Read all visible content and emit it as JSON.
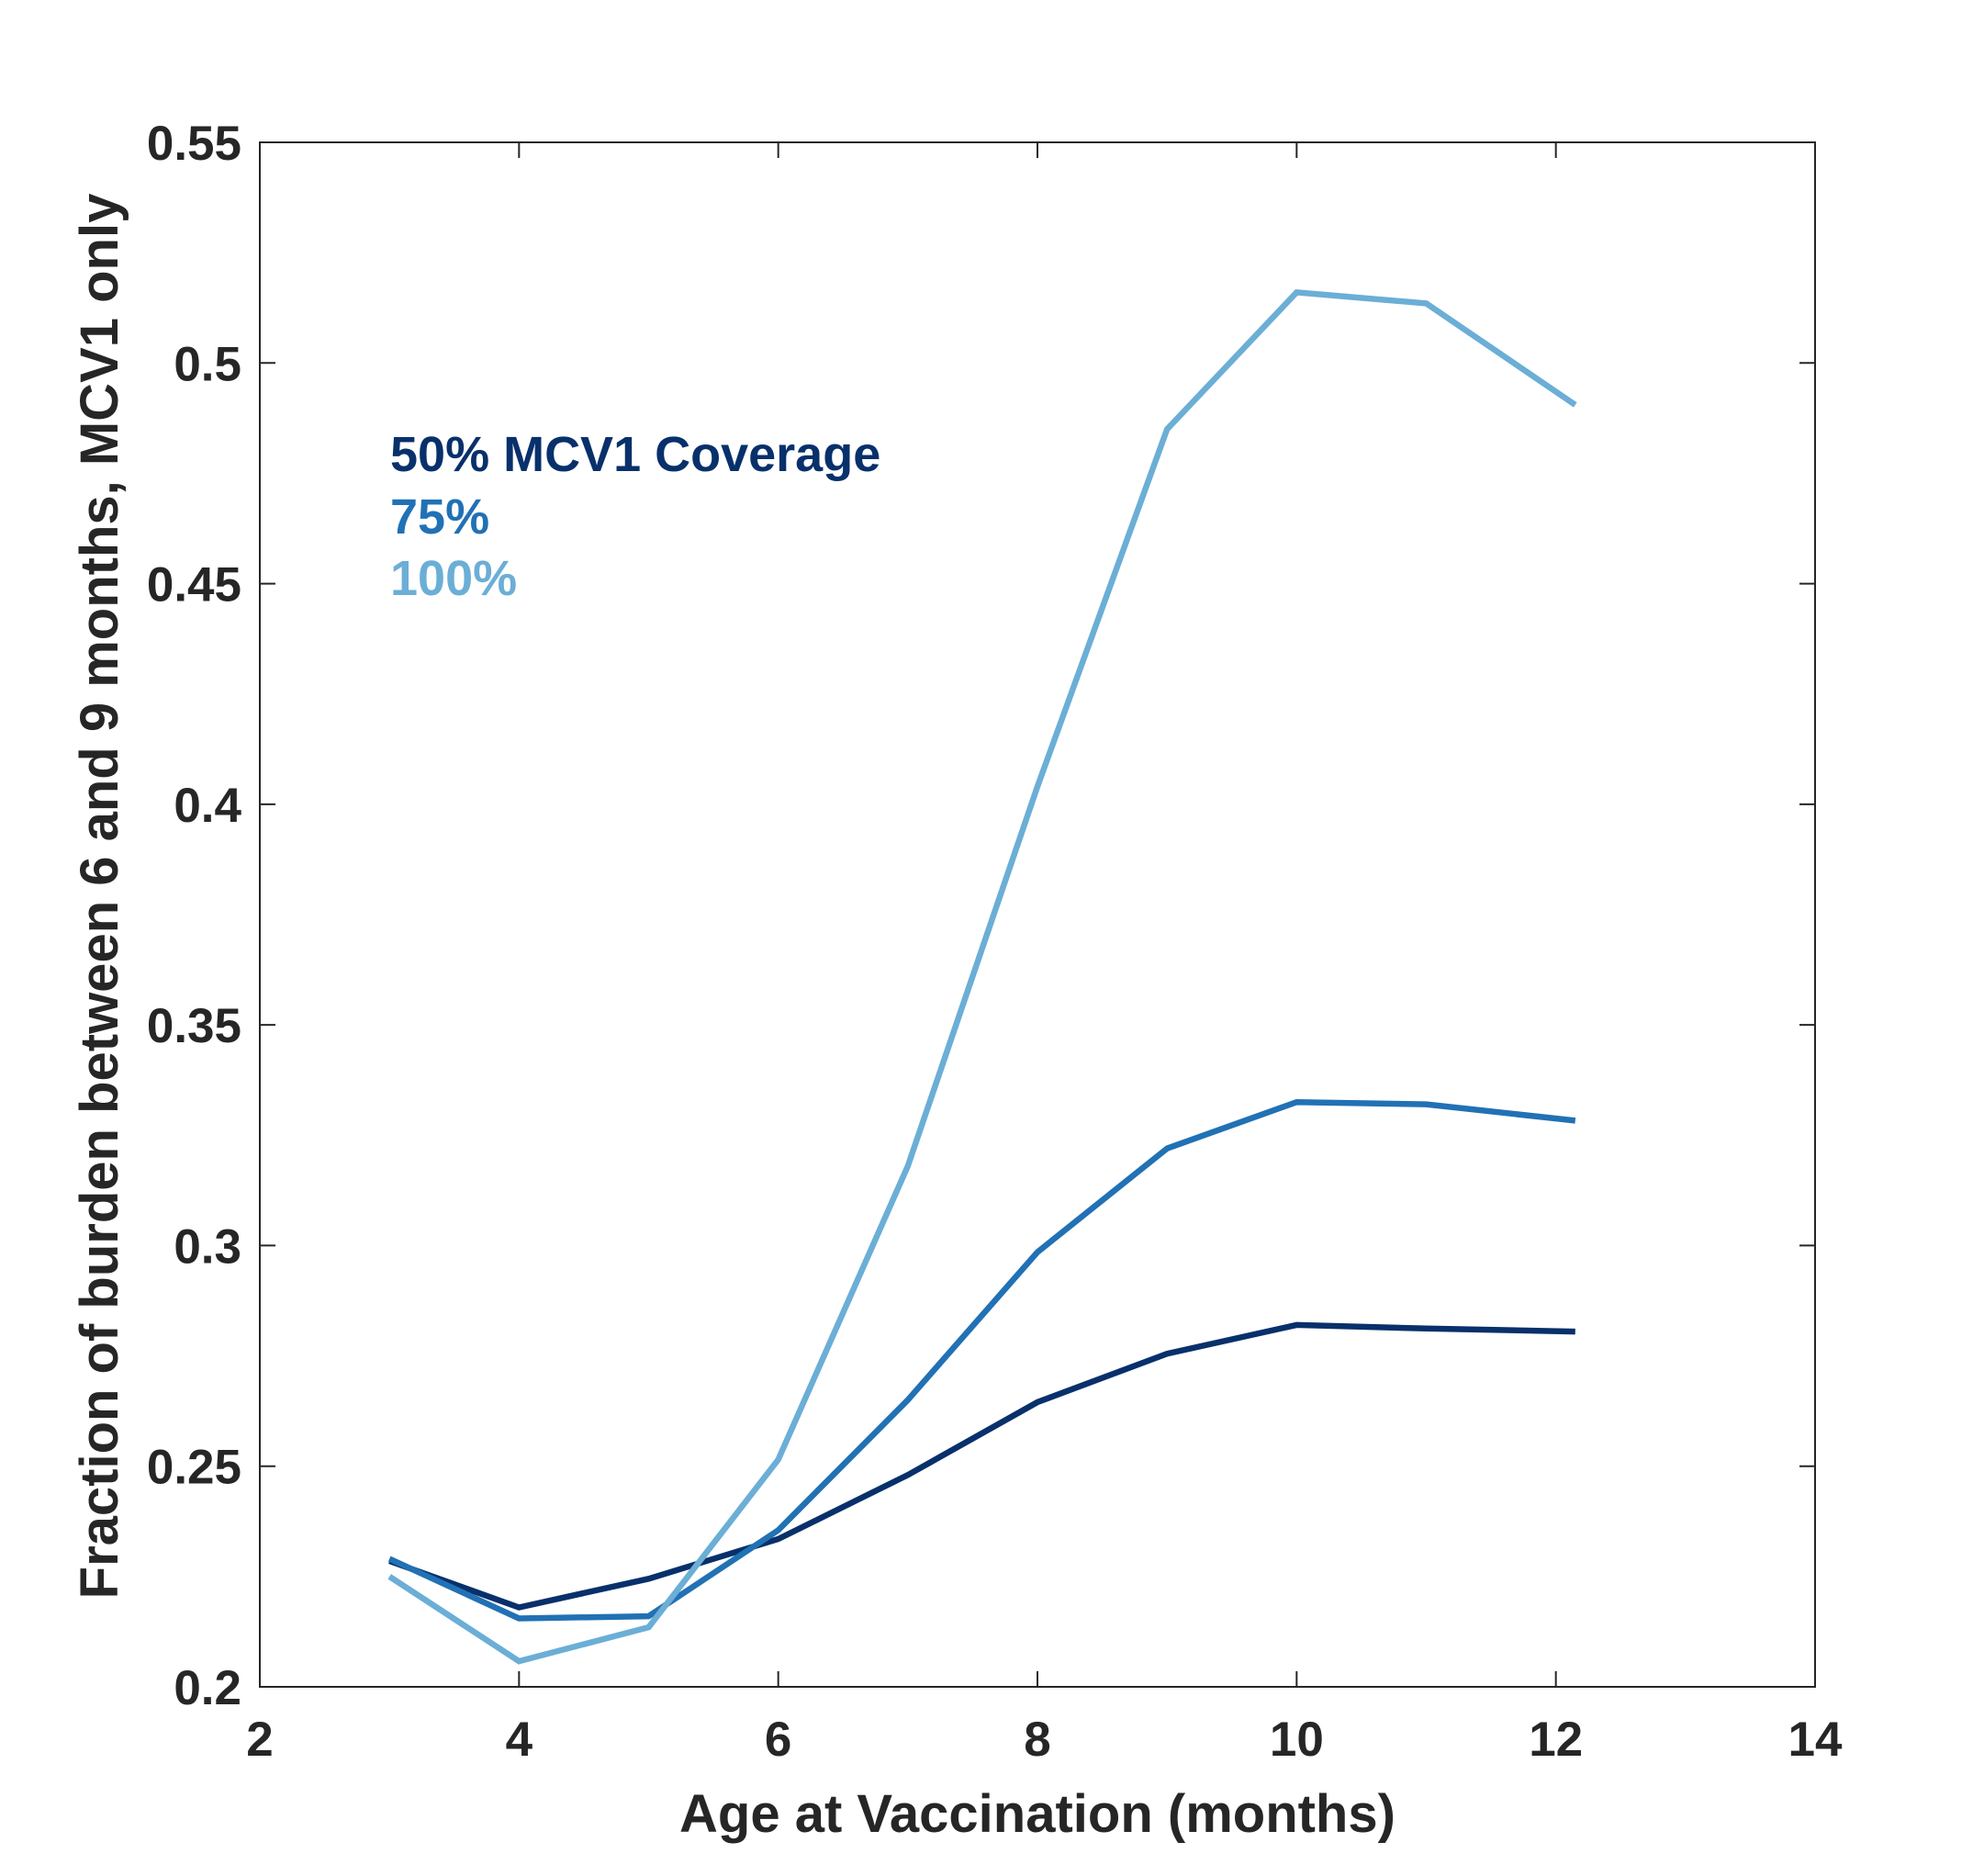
{
  "chart_data": {
    "type": "line",
    "title": "",
    "xlabel": "Age at Vaccination (months)",
    "ylabel": "Fraction of burden between 6 and 9 months, MCV1 only",
    "xlim": [
      2,
      14
    ],
    "ylim": [
      0.2,
      0.55
    ],
    "xticks": [
      2,
      4,
      6,
      8,
      10,
      12,
      14
    ],
    "yticks": [
      0.2,
      0.25,
      0.3,
      0.35,
      0.4,
      0.45,
      0.5,
      0.55
    ],
    "xtick_labels": [
      "2",
      "4",
      "6",
      "8",
      "10",
      "12",
      "14"
    ],
    "ytick_labels": [
      "0.2",
      "0.25",
      "0.3",
      "0.35",
      "0.4",
      "0.45",
      "0.5",
      "0.55"
    ],
    "grid": false,
    "legend_position": "top-left",
    "x": [
      3,
      4,
      5,
      6,
      7,
      8,
      9,
      10,
      11,
      12.15
    ],
    "series": [
      {
        "name": "50% MCV1 Coverage",
        "color": "#08306b",
        "values": [
          0.2285,
          0.218,
          0.2245,
          0.2335,
          0.248,
          0.2645,
          0.2755,
          0.282,
          0.2812,
          0.2805
        ]
      },
      {
        "name": "75%",
        "color": "#2171b5",
        "values": [
          0.229,
          0.2155,
          0.216,
          0.2355,
          0.265,
          0.2985,
          0.322,
          0.3325,
          0.332,
          0.3283
        ]
      },
      {
        "name": "100%",
        "color": "#6baed6",
        "values": [
          0.225,
          0.2058,
          0.2135,
          0.2515,
          0.318,
          0.404,
          0.485,
          0.516,
          0.5135,
          0.4905
        ]
      }
    ]
  }
}
